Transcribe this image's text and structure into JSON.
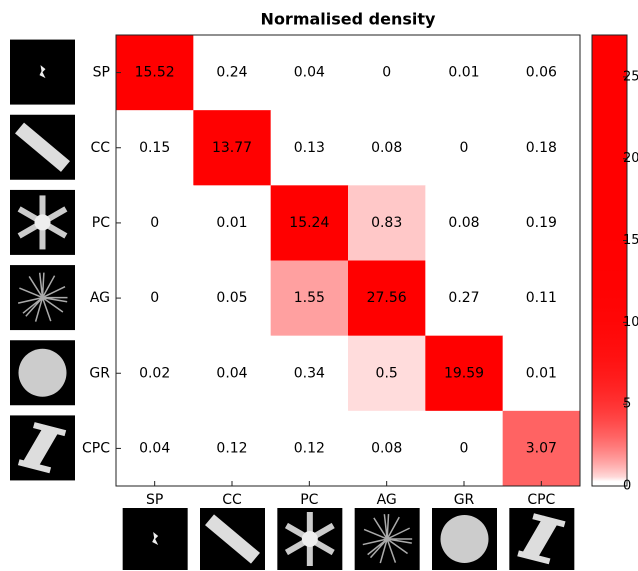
{
  "chart_data": {
    "type": "heatmap",
    "title": "Normalised density",
    "categories": [
      "SP",
      "CC",
      "PC",
      "AG",
      "GR",
      "CPC"
    ],
    "values": [
      [
        15.52,
        0.24,
        0.04,
        0,
        0.01,
        0.06
      ],
      [
        0.15,
        13.77,
        0.13,
        0.08,
        0,
        0.18
      ],
      [
        0,
        0.01,
        15.24,
        0.83,
        0.08,
        0.19
      ],
      [
        0,
        0.05,
        1.55,
        27.56,
        0.27,
        0.11
      ],
      [
        0.02,
        0.04,
        0.34,
        0.5,
        19.59,
        0.01
      ],
      [
        0.04,
        0.12,
        0.12,
        0.08,
        0,
        3.07
      ]
    ],
    "color": "#ff0000",
    "low_color": "#ffffff",
    "clim": [
      0,
      27.56
    ],
    "cticks": [
      0,
      5,
      10,
      15,
      20,
      25
    ]
  }
}
